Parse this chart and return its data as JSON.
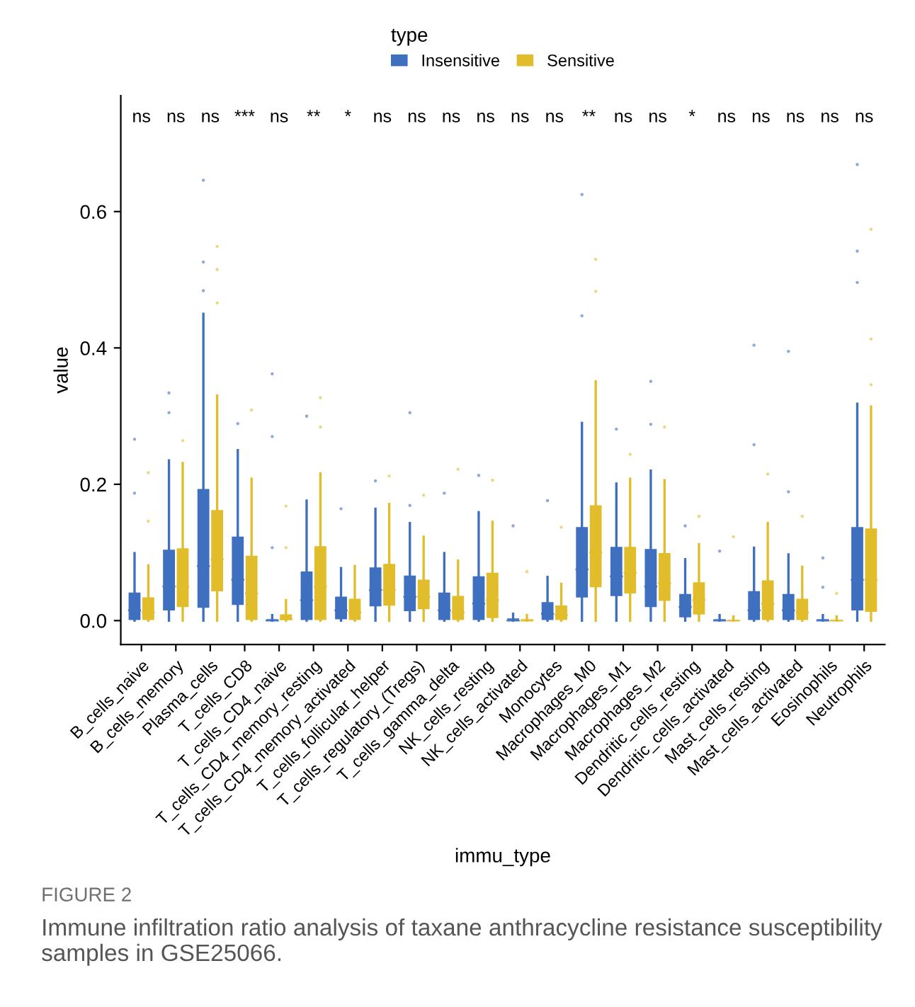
{
  "chart_data": {
    "type": "box",
    "xlabel": "immu_type",
    "ylabel": "value",
    "legend_title": "type",
    "legend": "top",
    "grid": false,
    "ylim": [
      -0.035,
      0.77
    ],
    "yticks": [
      {
        "value": 0,
        "label": "0.0"
      },
      0.2,
      0.4,
      0.6
    ],
    "categories": [
      "B_cells_naive",
      "B_cells_memory",
      "Plasma_cells",
      "T_cells_CD8",
      "T_cells_CD4_naive",
      "T_cells_CD4_memory_resting",
      "T_cells_CD4_memory_activated",
      "T_cells_follicular_helper",
      "T_cells_regulatory_(Tregs)",
      "T_cells_gamma_delta",
      "NK_cells_resting",
      "NK_cells_activated",
      "Monocytes",
      "Macrophages_M0",
      "Macrophages_M1",
      "Macrophages_M2",
      "Dendritic_cells_resting",
      "Dendritic_cells_activated",
      "Mast_cells_resting",
      "Mast_cells_activated",
      "Eosinophils",
      "Neutrophils"
    ],
    "series": [
      {
        "name": "Insensitive",
        "color": "#3f6fbf",
        "boxes": [
          {
            "low": 0,
            "q1": 0,
            "median": 0.015,
            "q3": 0.042,
            "high": 0.099,
            "outliers": [
              0.187,
              0.266
            ]
          },
          {
            "low": 0,
            "q1": 0.014,
            "median": 0.05,
            "q3": 0.105,
            "high": 0.235,
            "outliers": [
              0.305,
              0.334
            ]
          },
          {
            "low": 0,
            "q1": 0.018,
            "median": 0.08,
            "q3": 0.194,
            "high": 0.45,
            "outliers": [
              0.484,
              0.526,
              0.646
            ]
          },
          {
            "low": 0,
            "q1": 0.022,
            "median": 0.06,
            "q3": 0.124,
            "high": 0.25,
            "outliers": [
              0.289
            ]
          },
          {
            "low": 0,
            "q1": 0,
            "median": 0,
            "q3": 0.003,
            "high": 0.008,
            "outliers": [
              0.107,
              0.27,
              0.362
            ]
          },
          {
            "low": 0,
            "q1": 0,
            "median": 0.03,
            "q3": 0.073,
            "high": 0.176,
            "outliers": [
              0.3
            ]
          },
          {
            "low": 0,
            "q1": 0.001,
            "median": 0.015,
            "q3": 0.036,
            "high": 0.077,
            "outliers": [
              0.164
            ]
          },
          {
            "low": 0,
            "q1": 0.02,
            "median": 0.045,
            "q3": 0.079,
            "high": 0.164,
            "outliers": [
              0.205
            ]
          },
          {
            "low": 0,
            "q1": 0.013,
            "median": 0.035,
            "q3": 0.067,
            "high": 0.143,
            "outliers": [
              0.169,
              0.305
            ]
          },
          {
            "low": 0,
            "q1": 0,
            "median": 0.015,
            "q3": 0.042,
            "high": 0.099,
            "outliers": [
              0.187
            ]
          },
          {
            "low": 0,
            "q1": 0,
            "median": 0.025,
            "q3": 0.066,
            "high": 0.159,
            "outliers": [
              0.213
            ]
          },
          {
            "low": 0,
            "q1": 0,
            "median": 0,
            "q3": 0.004,
            "high": 0.01,
            "outliers": [
              0.139
            ]
          },
          {
            "low": 0,
            "q1": 0,
            "median": 0.01,
            "q3": 0.028,
            "high": 0.064,
            "outliers": [
              0.176
            ]
          },
          {
            "low": 0,
            "q1": 0.033,
            "median": 0.075,
            "q3": 0.138,
            "high": 0.29,
            "outliers": [
              0.447,
              0.625
            ]
          },
          {
            "low": 0,
            "q1": 0.035,
            "median": 0.065,
            "q3": 0.109,
            "high": 0.201,
            "outliers": [
              0.281
            ]
          },
          {
            "low": 0,
            "q1": 0.019,
            "median": 0.05,
            "q3": 0.106,
            "high": 0.22,
            "outliers": [
              0.288,
              0.351
            ]
          },
          {
            "low": 0,
            "q1": 0.004,
            "median": 0.02,
            "q3": 0.04,
            "high": 0.09,
            "outliers": [
              0.139
            ]
          },
          {
            "low": 0,
            "q1": 0,
            "median": 0,
            "q3": 0.003,
            "high": 0.008,
            "outliers": [
              0.102
            ]
          },
          {
            "low": 0,
            "q1": 0,
            "median": 0.015,
            "q3": 0.044,
            "high": 0.107,
            "outliers": [
              0.258,
              0.404
            ]
          },
          {
            "low": 0,
            "q1": 0,
            "median": 0.015,
            "q3": 0.04,
            "high": 0.097,
            "outliers": [
              0.189,
              0.395
            ]
          },
          {
            "low": 0,
            "q1": 0,
            "median": 0,
            "q3": 0.003,
            "high": 0.008,
            "outliers": [
              0.049,
              0.092
            ]
          },
          {
            "low": 0,
            "q1": 0.014,
            "median": 0.06,
            "q3": 0.138,
            "high": 0.318,
            "outliers": [
              0.496,
              0.542,
              0.669
            ]
          }
        ]
      },
      {
        "name": "Sensitive",
        "color": "#e1bd2b",
        "boxes": [
          {
            "low": 0,
            "q1": 0,
            "median": 0.012,
            "q3": 0.035,
            "high": 0.081,
            "outliers": [
              0.146,
              0.217
            ]
          },
          {
            "low": 0,
            "q1": 0.019,
            "median": 0.05,
            "q3": 0.107,
            "high": 0.231,
            "outliers": [
              0.264
            ]
          },
          {
            "low": 0,
            "q1": 0.042,
            "median": 0.09,
            "q3": 0.163,
            "high": 0.33,
            "outliers": [
              0.466,
              0.515,
              0.549
            ]
          },
          {
            "low": 0,
            "q1": 0,
            "median": 0.04,
            "q3": 0.096,
            "high": 0.208,
            "outliers": [
              0.309
            ]
          },
          {
            "low": 0,
            "q1": 0,
            "median": 0.002,
            "q3": 0.01,
            "high": 0.03,
            "outliers": [
              0.107,
              0.168
            ]
          },
          {
            "low": 0,
            "q1": 0,
            "median": 0.05,
            "q3": 0.11,
            "high": 0.216,
            "outliers": [
              0.284,
              0.327
            ]
          },
          {
            "low": 0,
            "q1": 0,
            "median": 0.012,
            "q3": 0.033,
            "high": 0.08
          },
          {
            "low": 0,
            "q1": 0.021,
            "median": 0.045,
            "q3": 0.084,
            "high": 0.171,
            "outliers": [
              0.212
            ]
          },
          {
            "low": 0,
            "q1": 0.016,
            "median": 0.035,
            "q3": 0.061,
            "high": 0.123,
            "outliers": [
              0.184
            ]
          },
          {
            "low": 0,
            "q1": 0,
            "median": 0.012,
            "q3": 0.037,
            "high": 0.088,
            "outliers": [
              0.222
            ]
          },
          {
            "low": 0,
            "q1": 0.003,
            "median": 0.03,
            "q3": 0.071,
            "high": 0.145,
            "outliers": [
              0.206
            ]
          },
          {
            "low": 0,
            "q1": 0,
            "median": 0,
            "q3": 0.003,
            "high": 0.008,
            "outliers": [
              0.072
            ]
          },
          {
            "low": 0,
            "q1": 0,
            "median": 0.008,
            "q3": 0.023,
            "high": 0.054,
            "outliers": [
              0.137
            ]
          },
          {
            "low": 0,
            "q1": 0.048,
            "median": 0.1,
            "q3": 0.17,
            "high": 0.351,
            "outliers": [
              0.483,
              0.53
            ]
          },
          {
            "low": 0,
            "q1": 0.039,
            "median": 0.07,
            "q3": 0.109,
            "high": 0.208,
            "outliers": [
              0.244
            ]
          },
          {
            "low": 0,
            "q1": 0.028,
            "median": 0.055,
            "q3": 0.1,
            "high": 0.206,
            "outliers": [
              0.284
            ]
          },
          {
            "low": 0,
            "q1": 0.008,
            "median": 0.03,
            "q3": 0.057,
            "high": 0.112,
            "outliers": [
              0.153
            ]
          },
          {
            "low": 0,
            "q1": 0,
            "median": 0,
            "q3": 0.002,
            "high": 0.006,
            "outliers": [
              0.123
            ]
          },
          {
            "low": 0,
            "q1": 0,
            "median": 0.025,
            "q3": 0.06,
            "high": 0.143,
            "outliers": [
              0.215
            ]
          },
          {
            "low": 0,
            "q1": 0,
            "median": 0.012,
            "q3": 0.033,
            "high": 0.079,
            "outliers": [
              0.153
            ]
          },
          {
            "low": 0,
            "q1": 0,
            "median": 0,
            "q3": 0.002,
            "high": 0.006,
            "outliers": [
              0.04
            ]
          },
          {
            "low": 0,
            "q1": 0.012,
            "median": 0.06,
            "q3": 0.136,
            "high": 0.314,
            "outliers": [
              0.346,
              0.413,
              0.574
            ]
          }
        ]
      }
    ],
    "annotations": [
      "ns",
      "ns",
      "ns",
      "***",
      "ns",
      "**",
      "*",
      "ns",
      "ns",
      "ns",
      "ns",
      "ns",
      "ns",
      "**",
      "ns",
      "ns",
      "*",
      "ns",
      "ns",
      "ns",
      "ns",
      "ns",
      "FIGURE 2",
      "Immune infiltration ratio analysis of taxane anthracycline resistance susceptibility samples in GSE25066."
    ]
  }
}
